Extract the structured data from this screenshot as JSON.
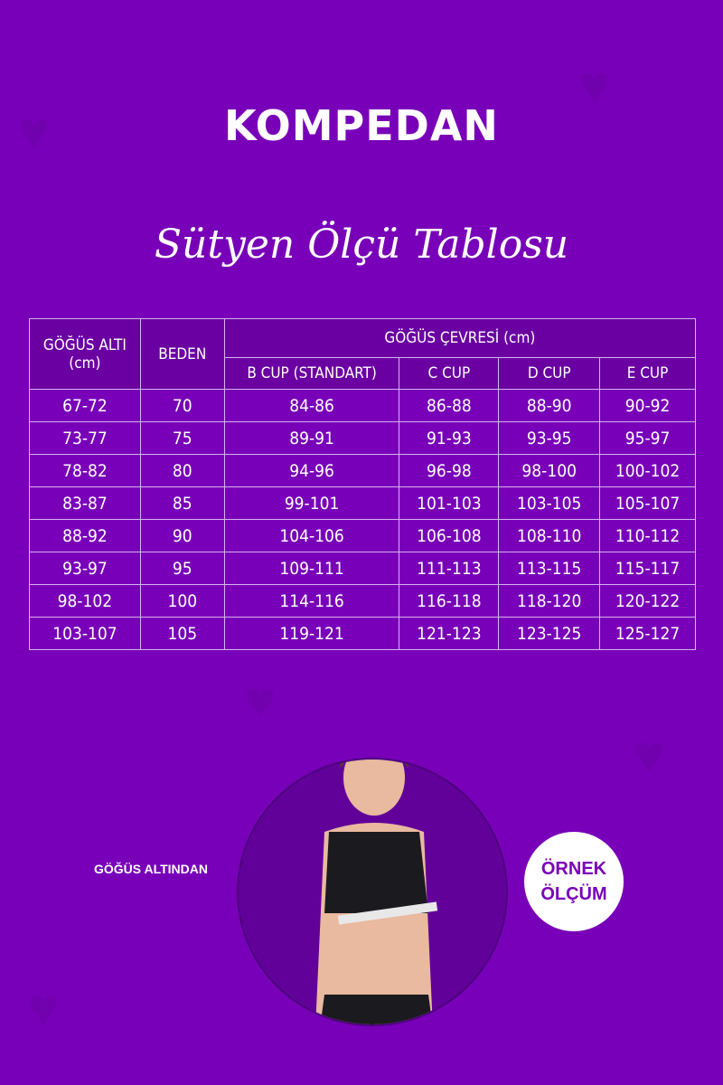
{
  "brand": {
    "logo": "KOMPEDAN"
  },
  "title": "Sütyen Ölçü Tablosu",
  "table": {
    "headers": {
      "underbust": "GÖĞÜS ALTI",
      "underbust_unit": "(cm)",
      "size": "BEDEN",
      "bust": "GÖĞÜS ÇEVRESİ (cm)",
      "cups": [
        "B CUP (STANDART)",
        "C CUP",
        "D CUP",
        "E CUP"
      ]
    },
    "rows": [
      [
        "67-72",
        "70",
        "84-86",
        "86-88",
        "88-90",
        "90-92"
      ],
      [
        "73-77",
        "75",
        "89-91",
        "91-93",
        "93-95",
        "95-97"
      ],
      [
        "78-82",
        "80",
        "94-96",
        "96-98",
        "98-100",
        "100-102"
      ],
      [
        "83-87",
        "85",
        "99-101",
        "101-103",
        "103-105",
        "105-107"
      ],
      [
        "88-92",
        "90",
        "104-106",
        "106-108",
        "108-110",
        "110-112"
      ],
      [
        "93-97",
        "95",
        "109-111",
        "111-113",
        "113-115",
        "115-117"
      ],
      [
        "98-102",
        "100",
        "114-116",
        "116-118",
        "118-120",
        "120-122"
      ],
      [
        "103-107",
        "105",
        "119-121",
        "121-123",
        "123-125",
        "125-127"
      ]
    ]
  },
  "illustration": {
    "label": "GÖĞÜS ALTINDAN",
    "badge_line1": "ÖRNEK",
    "badge_line2": "ÖLÇÜM"
  },
  "colors": {
    "background": "#7800b8",
    "header": "#6a00a2",
    "circle": "#62009a"
  }
}
